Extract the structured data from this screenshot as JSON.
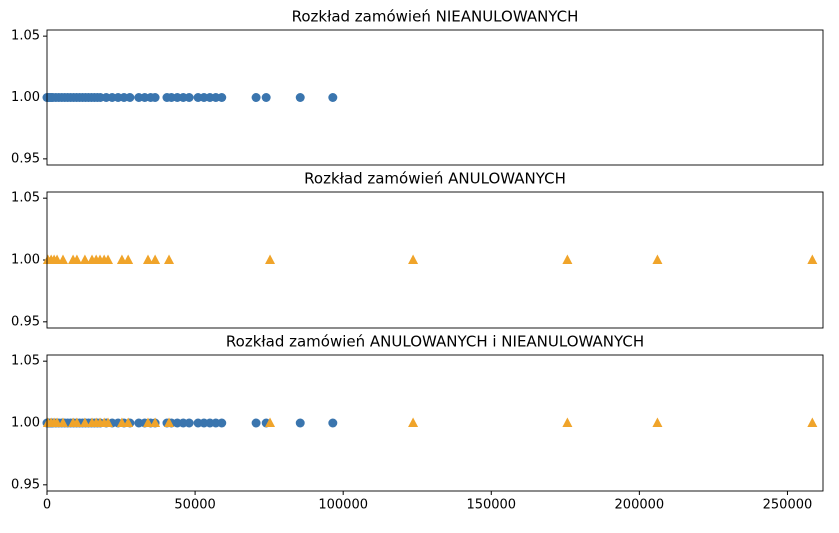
{
  "chart_data": [
    {
      "type": "scatter",
      "title": "Rozkład zamówień NIEANULOWANYCH",
      "xlim": [
        0,
        262000
      ],
      "ylim": [
        0.945,
        1.055
      ],
      "yticks": [
        0.95,
        {
          "value": 1,
          "label": "1.00"
        },
        1.05
      ],
      "series": [
        {
          "marker": "circle",
          "color": "#3a75ae",
          "x": [
            0,
            500,
            1000,
            1500,
            2000,
            3000,
            4000,
            5000,
            6000,
            7000,
            8000,
            9000,
            10000,
            11000,
            12000,
            13000,
            14000,
            15000,
            16000,
            17000,
            18000,
            20000,
            22000,
            24000,
            26000,
            28000,
            31000,
            33000,
            35000,
            36500,
            40500,
            42000,
            44000,
            46000,
            48000,
            51000,
            53000,
            55000,
            57000,
            59000,
            70600,
            74000,
            85500,
            96500
          ],
          "values": [
            1,
            1,
            1,
            1,
            1,
            1,
            1,
            1,
            1,
            1,
            1,
            1,
            1,
            1,
            1,
            1,
            1,
            1,
            1,
            1,
            1,
            1,
            1,
            1,
            1,
            1,
            1,
            1,
            1,
            1,
            1,
            1,
            1,
            1,
            1,
            1,
            1,
            1,
            1,
            1,
            1,
            1,
            1,
            1
          ]
        }
      ]
    },
    {
      "type": "scatter",
      "title": "Rozkład zamówień ANULOWANYCH",
      "xlim": [
        0,
        262000
      ],
      "ylim": [
        0.945,
        1.055
      ],
      "yticks": [
        0.95,
        {
          "value": 1,
          "label": "1.00"
        },
        1.05
      ],
      "series": [
        {
          "marker": "triangle",
          "color": "#f0a42a",
          "x": [
            300,
            1400,
            2400,
            3400,
            5400,
            8800,
            10100,
            12800,
            15200,
            16600,
            17900,
            19300,
            20600,
            25300,
            27400,
            34100,
            36500,
            41200,
            75300,
            123600,
            175700,
            206100,
            258400
          ],
          "values": [
            1,
            1,
            1,
            1,
            1,
            1,
            1,
            1,
            1,
            1,
            1,
            1,
            1,
            1,
            1,
            1,
            1,
            1,
            1,
            1,
            1,
            1,
            1
          ]
        }
      ]
    },
    {
      "type": "scatter",
      "title": "Rozkład zamówień ANULOWANYCH i NIEANULOWANYCH",
      "xlim": [
        0,
        262000
      ],
      "ylim": [
        0.945,
        1.055
      ],
      "xticks": [
        0,
        50000,
        100000,
        150000,
        200000,
        250000
      ],
      "yticks": [
        0.95,
        {
          "value": 1,
          "label": "1.00"
        },
        1.05
      ],
      "series": [
        {
          "marker": "circle",
          "color": "#3a75ae",
          "x": [
            0,
            500,
            1000,
            1500,
            2000,
            3000,
            4000,
            5000,
            6000,
            7000,
            8000,
            9000,
            10000,
            11000,
            12000,
            13000,
            14000,
            15000,
            16000,
            17000,
            18000,
            20000,
            22000,
            24000,
            26000,
            28000,
            31000,
            33000,
            35000,
            36500,
            40500,
            42000,
            44000,
            46000,
            48000,
            51000,
            53000,
            55000,
            57000,
            59000,
            70600,
            74000,
            85500,
            96500
          ],
          "values": [
            1,
            1,
            1,
            1,
            1,
            1,
            1,
            1,
            1,
            1,
            1,
            1,
            1,
            1,
            1,
            1,
            1,
            1,
            1,
            1,
            1,
            1,
            1,
            1,
            1,
            1,
            1,
            1,
            1,
            1,
            1,
            1,
            1,
            1,
            1,
            1,
            1,
            1,
            1,
            1,
            1,
            1,
            1,
            1
          ]
        },
        {
          "marker": "triangle",
          "color": "#f0a42a",
          "x": [
            300,
            1400,
            2400,
            3400,
            5400,
            8800,
            10100,
            12800,
            15200,
            16600,
            17900,
            19300,
            20600,
            25300,
            27400,
            34100,
            36500,
            41200,
            75300,
            123600,
            175700,
            206100,
            258400
          ],
          "values": [
            1,
            1,
            1,
            1,
            1,
            1,
            1,
            1,
            1,
            1,
            1,
            1,
            1,
            1,
            1,
            1,
            1,
            1,
            1,
            1,
            1,
            1,
            1
          ]
        }
      ]
    }
  ]
}
